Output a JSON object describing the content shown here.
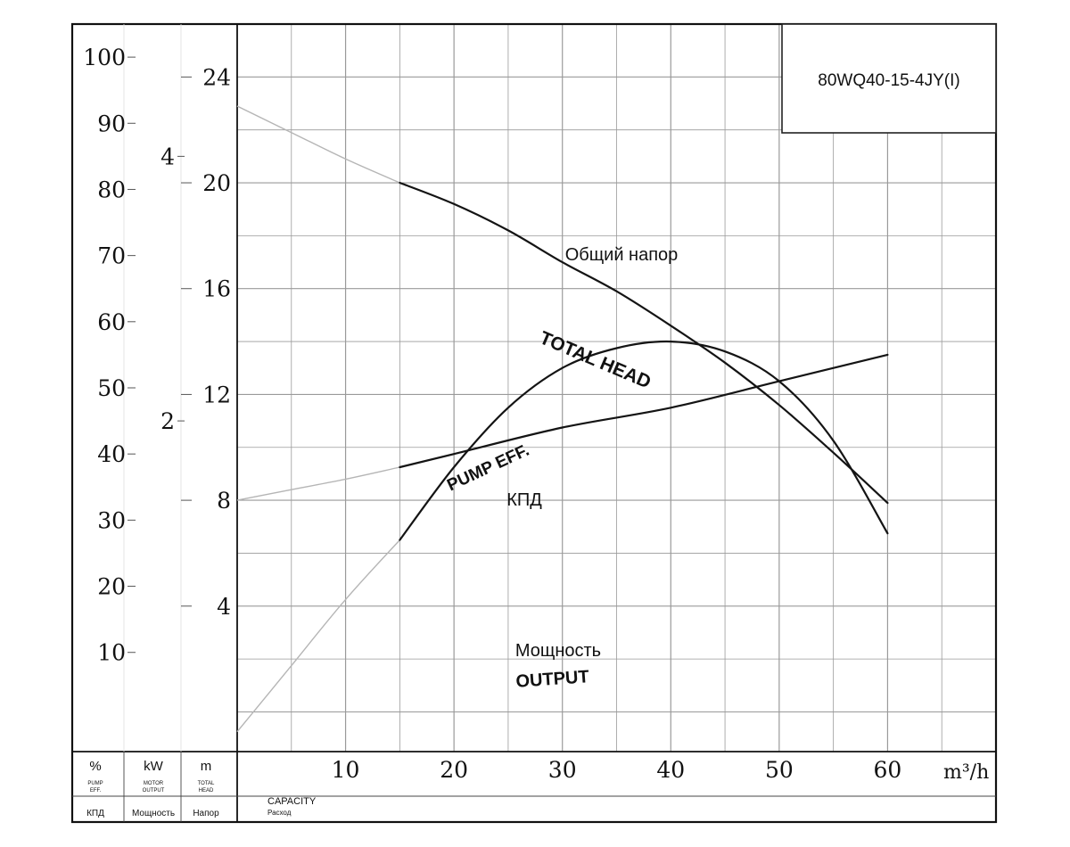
{
  "chart_data": {
    "type": "line",
    "model": "80WQ40-15-4JY(I)",
    "x_unit": "m³/h",
    "xlim": [
      0,
      70
    ],
    "x_ticks": [
      10,
      20,
      30,
      40,
      50,
      60
    ],
    "axes": {
      "head": {
        "unit": "m",
        "ticks": [
          4,
          8,
          12,
          16,
          20,
          24
        ],
        "range": [
          -1.5,
          26
        ],
        "label_line1": "TOTAL",
        "label_line2": "HEAD",
        "label_ru": "Напор"
      },
      "efficiency": {
        "unit": "%",
        "ticks": [
          10,
          20,
          30,
          40,
          50,
          60,
          70,
          80,
          90,
          100
        ],
        "range": [
          -5,
          105
        ],
        "label_line1": "PUMP",
        "label_line2": "EFF.",
        "label_ru": "КПД"
      },
      "power": {
        "unit": "kW",
        "ticks": [
          2,
          4
        ],
        "range": [
          -0.5,
          5
        ],
        "label_line1": "MOTOR",
        "label_line2": "OUTPUT",
        "label_ru": "Мощность"
      }
    },
    "capacity_label": "CAPACITY",
    "capacity_label_ru": "Расход",
    "series": [
      {
        "name": "TOTAL HEAD",
        "name_ru": "Общий напор",
        "axis": "head",
        "x": [
          15,
          20,
          25,
          30,
          35,
          40,
          45,
          50,
          55,
          60
        ],
        "y": [
          20,
          19.2,
          18.2,
          17.0,
          15.9,
          14.6,
          13.2,
          11.6,
          9.8,
          7.9
        ],
        "extrapolated_x": [
          0,
          5,
          10,
          15
        ],
        "extrapolated_y": [
          22.9,
          21.9,
          20.9,
          20
        ]
      },
      {
        "name": "PUMP EFF.",
        "name_ru": "КПД",
        "axis": "efficiency",
        "x": [
          15,
          20,
          25,
          30,
          35,
          40,
          45,
          50,
          55,
          60
        ],
        "y": [
          27,
          38,
          47,
          53,
          56,
          57,
          55.5,
          51,
          42,
          28
        ],
        "extrapolated_x": [
          0,
          5,
          10,
          15
        ],
        "extrapolated_y": [
          -2,
          8,
          18,
          27
        ]
      },
      {
        "name": "OUTPUT",
        "name_ru": "Мощность",
        "axis": "power",
        "x": [
          15,
          20,
          30,
          40,
          50,
          60
        ],
        "y": [
          1.65,
          1.75,
          1.95,
          2.1,
          2.3,
          2.5
        ],
        "extrapolated_x": [
          0,
          5,
          10,
          15
        ],
        "extrapolated_y": [
          1.4,
          1.48,
          1.56,
          1.65
        ]
      }
    ]
  }
}
